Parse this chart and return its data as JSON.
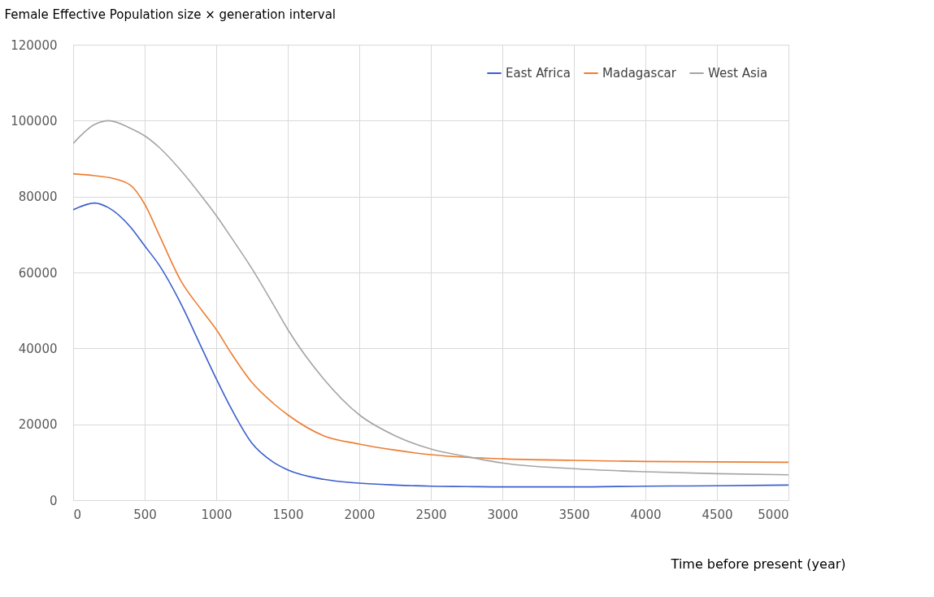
{
  "chart_data": {
    "type": "line",
    "xlabel": "Time before present (year)",
    "ylabel": "Female Effective Population size × generation interval",
    "xlim": [
      0,
      5000
    ],
    "xticks": [
      0,
      500,
      1000,
      1500,
      2000,
      2500,
      3000,
      3500,
      4000,
      4500,
      5000
    ],
    "ylim": [
      0,
      120000
    ],
    "yticks": [
      0,
      20000,
      40000,
      60000,
      80000,
      100000,
      120000
    ],
    "grid": true,
    "legend": "top right",
    "marker": "none",
    "line_style": "solid",
    "x": [
      0,
      150,
      250,
      400,
      500,
      600,
      750,
      900,
      1000,
      1100,
      1250,
      1400,
      1500,
      1750,
      2000,
      2250,
      2500,
      2750,
      3000,
      3500,
      4000,
      4500,
      5000
    ],
    "series": [
      {
        "name": "East Africa",
        "color": "#3a5fcd",
        "values": [
          76500,
          78300,
          77000,
          72000,
          67000,
          62000,
          52000,
          40000,
          32000,
          24500,
          15000,
          10000,
          8000,
          5500,
          4500,
          4000,
          3700,
          3600,
          3500,
          3500,
          3700,
          3800,
          4000
        ]
      },
      {
        "name": "Madagascar",
        "color": "#ed7d31",
        "values": [
          86000,
          85500,
          85000,
          83000,
          78000,
          70000,
          58000,
          50000,
          45000,
          39000,
          31000,
          25500,
          22500,
          17000,
          14800,
          13200,
          12000,
          11300,
          10900,
          10500,
          10200,
          10100,
          10000
        ]
      },
      {
        "name": "West Asia",
        "color": "#a5a5a5",
        "values": [
          94000,
          99000,
          100000,
          98000,
          96000,
          93000,
          87000,
          80000,
          75000,
          69500,
          61000,
          51500,
          45000,
          32000,
          22500,
          17000,
          13500,
          11500,
          9800,
          8300,
          7500,
          7000,
          6700
        ]
      }
    ]
  }
}
